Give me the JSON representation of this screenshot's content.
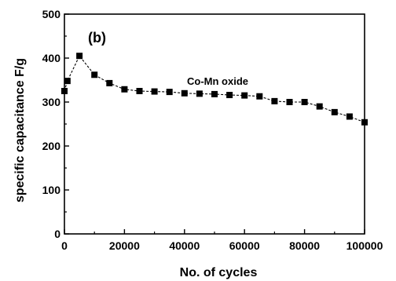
{
  "chart_data": {
    "type": "line",
    "panel_label": "(b)",
    "xlabel": "No. of cycles",
    "ylabel": "specific capacitance F/g",
    "xlim": [
      0,
      100000
    ],
    "ylim": [
      0,
      500
    ],
    "x_ticks": [
      "0",
      "20000",
      "40000",
      "60000",
      "80000",
      "100000"
    ],
    "y_ticks": [
      "0",
      "100",
      "200",
      "300",
      "400",
      "500"
    ],
    "grid": false,
    "series": [
      {
        "name": "Co-Mn oxide",
        "marker": "square",
        "line_style": "dashed",
        "color": "#000000",
        "x": [
          0,
          1000,
          5000,
          10000,
          15000,
          20000,
          25000,
          30000,
          35000,
          40000,
          45000,
          50000,
          55000,
          60000,
          65000,
          70000,
          75000,
          80000,
          85000,
          90000,
          95000,
          100000
        ],
        "y": [
          325,
          348,
          405,
          362,
          343,
          329,
          325,
          324,
          323,
          320,
          319,
          318,
          316,
          315,
          313,
          302,
          300,
          300,
          290,
          277,
          267,
          254
        ]
      }
    ]
  }
}
